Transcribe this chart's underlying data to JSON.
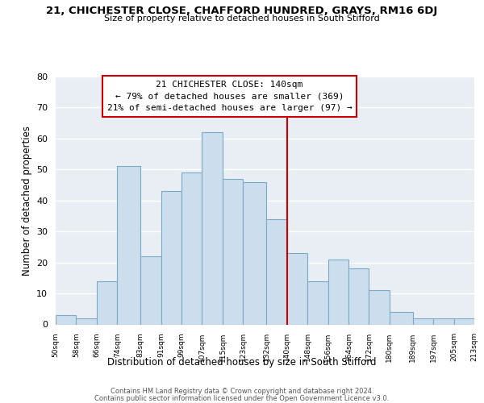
{
  "title_line1": "21, CHICHESTER CLOSE, CHAFFORD HUNDRED, GRAYS, RM16 6DJ",
  "title_line2": "Size of property relative to detached houses in South Stifford",
  "xlabel": "Distribution of detached houses by size in South Stifford",
  "ylabel": "Number of detached properties",
  "bins": [
    50,
    58,
    66,
    74,
    83,
    91,
    99,
    107,
    115,
    123,
    132,
    140,
    148,
    156,
    164,
    172,
    180,
    189,
    197,
    205,
    213
  ],
  "counts": [
    3,
    2,
    14,
    51,
    22,
    43,
    49,
    62,
    47,
    46,
    34,
    23,
    14,
    21,
    18,
    11,
    4,
    2,
    2,
    2
  ],
  "bar_color": "#ccdded",
  "bar_edge_color": "#7aaac8",
  "vline_x": 140,
  "vline_color": "#cc0000",
  "annotation_title": "21 CHICHESTER CLOSE: 140sqm",
  "annotation_line1": "← 79% of detached houses are smaller (369)",
  "annotation_line2": "21% of semi-detached houses are larger (97) →",
  "annotation_box_color": "#ffffff",
  "annotation_box_edge": "#cc0000",
  "ylim": [
    0,
    80
  ],
  "yticks": [
    0,
    10,
    20,
    30,
    40,
    50,
    60,
    70,
    80
  ],
  "tick_labels": [
    "50sqm",
    "58sqm",
    "66sqm",
    "74sqm",
    "83sqm",
    "91sqm",
    "99sqm",
    "107sqm",
    "115sqm",
    "123sqm",
    "132sqm",
    "140sqm",
    "148sqm",
    "156sqm",
    "164sqm",
    "172sqm",
    "180sqm",
    "189sqm",
    "197sqm",
    "205sqm",
    "213sqm"
  ],
  "footnote_line1": "Contains HM Land Registry data © Crown copyright and database right 2024.",
  "footnote_line2": "Contains public sector information licensed under the Open Government Licence v3.0.",
  "bg_color": "#ffffff",
  "plot_bg_color": "#e8eef4",
  "grid_color": "#ffffff"
}
